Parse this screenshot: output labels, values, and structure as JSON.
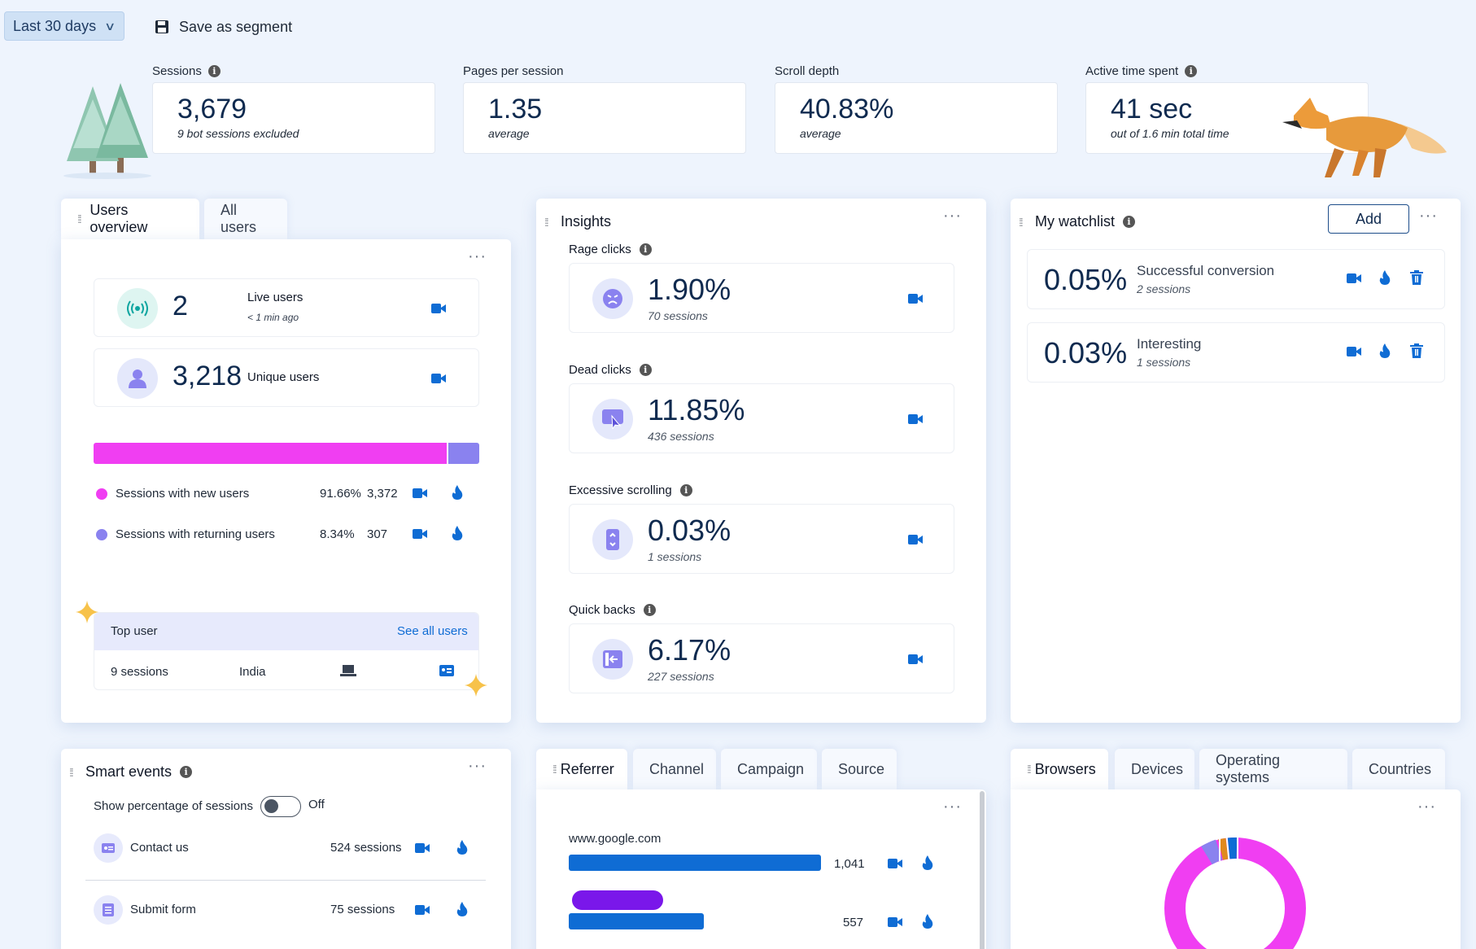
{
  "toolbar": {
    "range_label": "Last 30 days",
    "save_label": "Save as segment"
  },
  "kpis": [
    {
      "label": "Sessions",
      "value": "3,679",
      "sub": "9 bot sessions excluded"
    },
    {
      "label": "Pages per session",
      "value": "1.35",
      "sub": "average"
    },
    {
      "label": "Scroll depth",
      "value": "40.83%",
      "sub": "average"
    },
    {
      "label": "Active time spent",
      "value": "41 sec",
      "sub": "out of 1.6 min total time"
    }
  ],
  "users_overview": {
    "tabs": [
      "Users overview",
      "All users"
    ],
    "live": {
      "value": "2",
      "label": "Live users",
      "sub": "< 1 min ago"
    },
    "unique": {
      "value": "3,218",
      "label": "Unique users"
    },
    "split": {
      "new_fraction": 0.9166,
      "new_color": "#f03ef2",
      "returning_color": "#8a82ef"
    },
    "rows": [
      {
        "label": "Sessions with new users",
        "pct": "91.66%",
        "count": "3,372"
      },
      {
        "label": "Sessions with returning users",
        "pct": "8.34%",
        "count": "307"
      }
    ],
    "top_user": {
      "title": "Top user",
      "link": "See all users",
      "sessions": "9 sessions",
      "country": "India"
    }
  },
  "insights": {
    "title": "Insights",
    "items": [
      {
        "label": "Rage clicks",
        "value": "1.90%",
        "sub": "70 sessions",
        "icon": "angry-face-icon"
      },
      {
        "label": "Dead clicks",
        "value": "11.85%",
        "sub": "436 sessions",
        "icon": "dead-click-icon"
      },
      {
        "label": "Excessive scrolling",
        "value": "0.03%",
        "sub": "1 sessions",
        "icon": "scroll-icon"
      },
      {
        "label": "Quick backs",
        "value": "6.17%",
        "sub": "227 sessions",
        "icon": "back-arrow-icon"
      }
    ]
  },
  "watchlist": {
    "title": "My watchlist",
    "add_label": "Add",
    "items": [
      {
        "value": "0.05%",
        "name": "Successful conversion",
        "sub": "2 sessions"
      },
      {
        "value": "0.03%",
        "name": "Interesting",
        "sub": "1 sessions"
      }
    ]
  },
  "smart_events": {
    "title": "Smart events",
    "toggle_label": "Show percentage of sessions",
    "toggle_state": "Off",
    "items": [
      {
        "name": "Contact us",
        "count": "524 sessions"
      },
      {
        "name": "Submit form",
        "count": "75 sessions"
      }
    ]
  },
  "referrer": {
    "tabs": [
      "Referrer",
      "Channel",
      "Campaign",
      "Source"
    ],
    "max": 1041,
    "items": [
      {
        "name": "www.google.com",
        "value": 1041,
        "label": "1,041"
      },
      {
        "name": "",
        "value": 557,
        "label": "557"
      }
    ]
  },
  "browsers": {
    "tabs": [
      "Browsers",
      "Devices",
      "Operating systems",
      "Countries"
    ]
  },
  "colors": {
    "accent": "#0f6cd4",
    "magenta": "#f03ef2",
    "violet": "#8a82ef",
    "navy": "#0f2a4f"
  }
}
